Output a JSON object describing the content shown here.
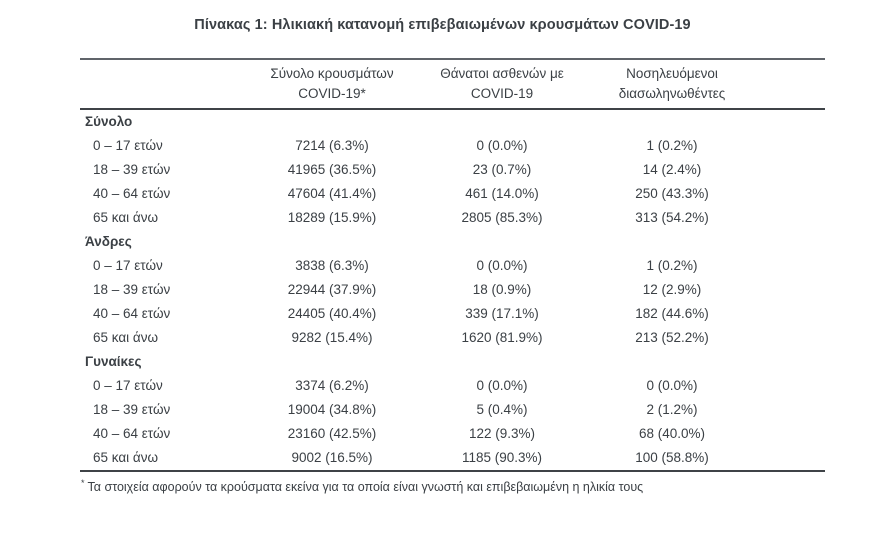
{
  "chart_data": {
    "type": "table",
    "title": "Πίνακας 1: Ηλικιακή κατανομή επιβεβαιωμένων κρουσμάτων COVID-19",
    "column_headers": [
      [
        "Σύνολο κρουσμάτων",
        "COVID-19*"
      ],
      [
        "Θάνατοι ασθενών με",
        "COVID-19"
      ],
      [
        "Νοσηλευόμενοι",
        "διασωληνωθέντες"
      ]
    ],
    "sections": [
      {
        "label": "Σύνολο",
        "rows": [
          {
            "label": "0 – 17 ετών",
            "cases": "7214 (6.3%)",
            "deaths": "0 (0.0%)",
            "intubated": "1 (0.2%)"
          },
          {
            "label": "18 – 39 ετών",
            "cases": "41965 (36.5%)",
            "deaths": "23 (0.7%)",
            "intubated": "14 (2.4%)"
          },
          {
            "label": "40 – 64 ετών",
            "cases": "47604 (41.4%)",
            "deaths": "461 (14.0%)",
            "intubated": "250 (43.3%)"
          },
          {
            "label": "65 και άνω",
            "cases": "18289 (15.9%)",
            "deaths": "2805 (85.3%)",
            "intubated": "313 (54.2%)"
          }
        ]
      },
      {
        "label": "Άνδρες",
        "rows": [
          {
            "label": "0 – 17 ετών",
            "cases": "3838 (6.3%)",
            "deaths": "0 (0.0%)",
            "intubated": "1 (0.2%)"
          },
          {
            "label": "18 – 39 ετών",
            "cases": "22944 (37.9%)",
            "deaths": "18 (0.9%)",
            "intubated": "12 (2.9%)"
          },
          {
            "label": "40 – 64 ετών",
            "cases": "24405 (40.4%)",
            "deaths": "339 (17.1%)",
            "intubated": "182 (44.6%)"
          },
          {
            "label": "65 και άνω",
            "cases": "9282 (15.4%)",
            "deaths": "1620 (81.9%)",
            "intubated": "213 (52.2%)"
          }
        ]
      },
      {
        "label": "Γυναίκες",
        "rows": [
          {
            "label": "0 – 17 ετών",
            "cases": "3374 (6.2%)",
            "deaths": "0 (0.0%)",
            "intubated": "0 (0.0%)"
          },
          {
            "label": "18 – 39 ετών",
            "cases": "19004 (34.8%)",
            "deaths": "5 (0.4%)",
            "intubated": "2 (1.2%)"
          },
          {
            "label": "40 – 64 ετών",
            "cases": "23160 (42.5%)",
            "deaths": "122 (9.3%)",
            "intubated": "68 (40.0%)"
          },
          {
            "label": "65 και άνω",
            "cases": "9002 (16.5%)",
            "deaths": "1185 (90.3%)",
            "intubated": "100 (58.8%)"
          }
        ]
      }
    ]
  },
  "footnote": {
    "marker": "*",
    "text": "Τα στοιχεία αφορούν τα κρούσματα εκείνα για τα οποία είναι γνωστή και επιβεβαιωμένη η ηλικία τους"
  },
  "colors": {
    "text": "#3b4045",
    "rule_top": "#60646a",
    "rule_dark": "#3f4347",
    "background": "#ffffff"
  }
}
